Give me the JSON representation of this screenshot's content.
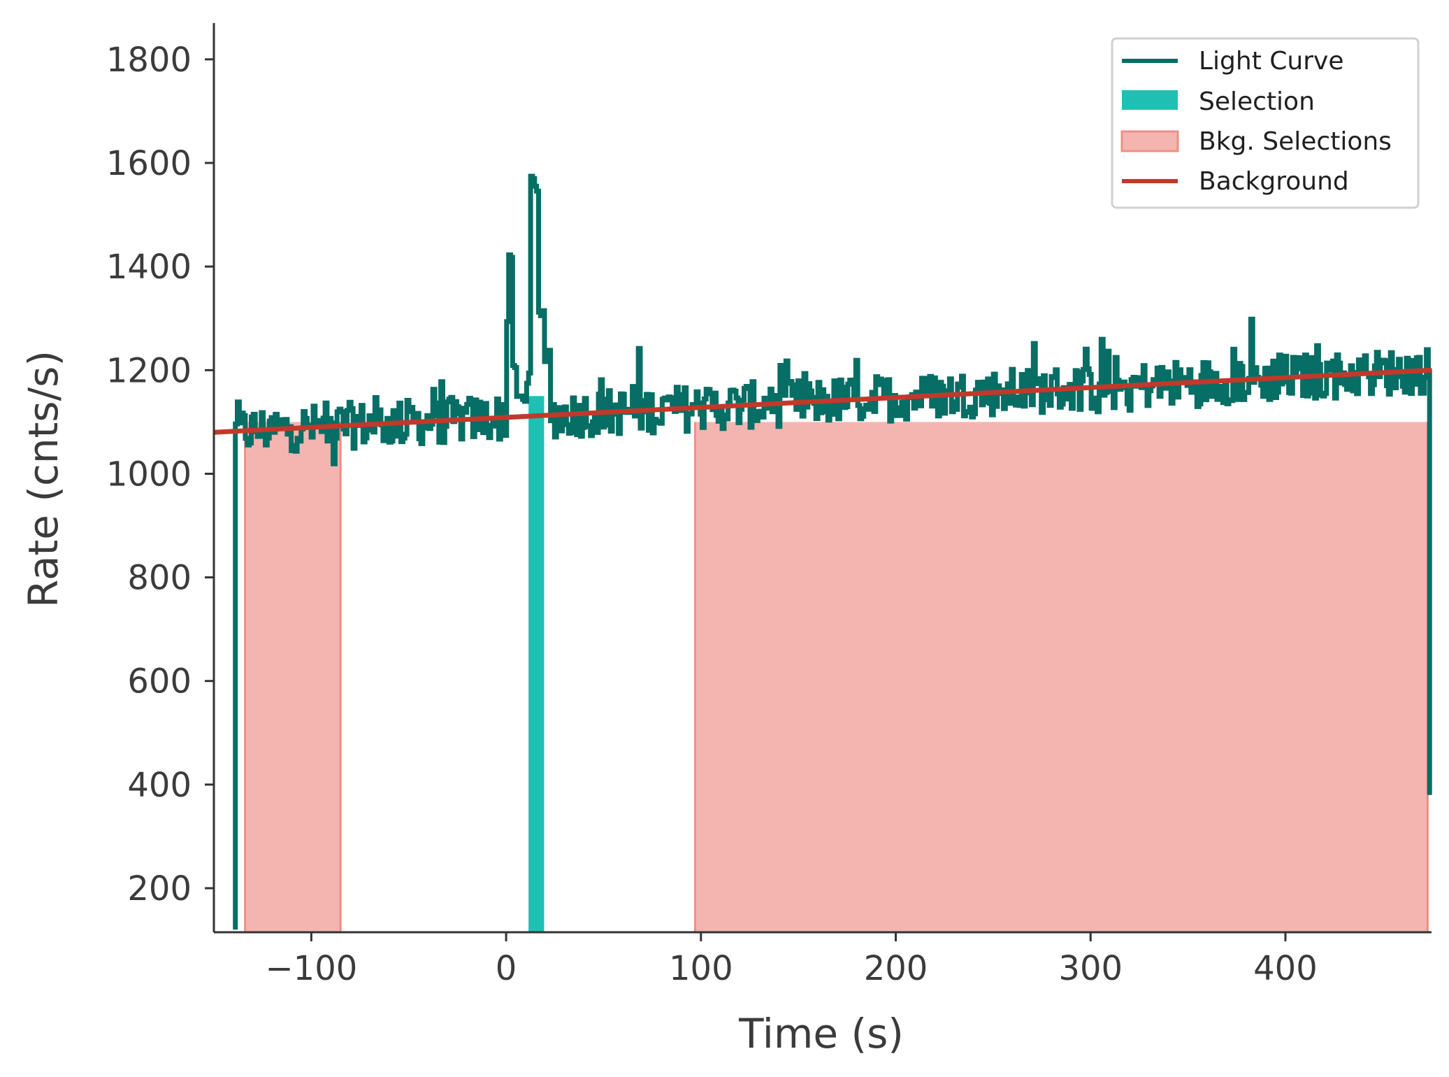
{
  "chart_data": {
    "type": "line",
    "xlabel": "Time (s)",
    "ylabel": "Rate (cnts/s)",
    "xlim": [
      -150,
      475
    ],
    "ylim": [
      115,
      1870
    ],
    "x_ticks": [
      -100,
      0,
      100,
      200,
      300,
      400
    ],
    "x_tick_labels": [
      "−100",
      "0",
      "100",
      "200",
      "300",
      "400"
    ],
    "y_ticks": [
      200,
      400,
      600,
      800,
      1000,
      1200,
      1400,
      1600,
      1800
    ],
    "y_tick_labels": [
      "200",
      "400",
      "600",
      "800",
      "1000",
      "1200",
      "1400",
      "1600",
      "1800"
    ],
    "grid": false,
    "legend_position": "top-right",
    "legend": [
      "Light Curve",
      "Selection",
      "Bkg. Selections",
      "Background"
    ],
    "colors": {
      "light_curve": "#066e64",
      "selection": "#20bfb3",
      "bkg_fill": "#f4b5b0",
      "bkg_edge": "#ee8f86",
      "background": "#c1392b",
      "axis": "#333333"
    },
    "light_curve": {
      "name": "Light Curve",
      "t_start": -139,
      "t_end": 474,
      "bin_width": 1.024,
      "start_value": 120,
      "end_value": 380,
      "noise_amplitude": 45,
      "burst": [
        {
          "t": 0,
          "v": 1290
        },
        {
          "t": 1,
          "v": 1420
        },
        {
          "t": 3,
          "v": 1200
        },
        {
          "t": 5,
          "v": 1150
        },
        {
          "t": 10,
          "v": 1180
        },
        {
          "t": 12,
          "v": 1560
        },
        {
          "t": 14,
          "v": 1550
        },
        {
          "t": 16,
          "v": 1300
        },
        {
          "t": 19,
          "v": 1230
        },
        {
          "t": 22,
          "v": 1150
        }
      ]
    },
    "selection": {
      "name": "Selection",
      "range": [
        11.5,
        19.5
      ]
    },
    "bkg_selections": {
      "name": "Bkg. Selections",
      "ranges": [
        [
          -134,
          -85
        ],
        [
          97,
          473
        ]
      ]
    },
    "background": {
      "name": "Background",
      "x": [
        -150,
        475
      ],
      "y": [
        1080,
        1200
      ]
    }
  }
}
